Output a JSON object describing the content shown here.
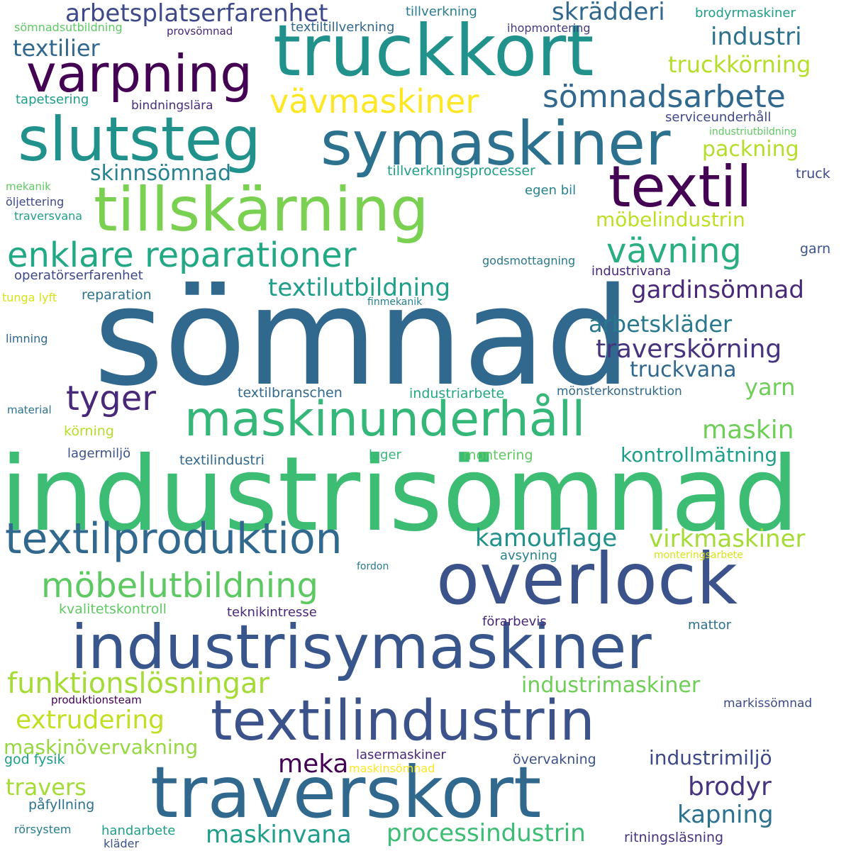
{
  "words": [
    {
      "text": "sömnad",
      "color": "#31688e"
    },
    {
      "text": "industrisömnad",
      "color": "#3dbc74"
    },
    {
      "text": "truckkort",
      "color": "#21918c"
    },
    {
      "text": "symaskiner",
      "color": "#2c728e"
    },
    {
      "text": "slutsteg",
      "color": "#21918c"
    },
    {
      "text": "industrisymaskiner",
      "color": "#39568c"
    },
    {
      "text": "overlock",
      "color": "#3b528b"
    },
    {
      "text": "traverskort",
      "color": "#31688e"
    },
    {
      "text": "textilindustrin",
      "color": "#3b528b"
    },
    {
      "text": "tillskärning",
      "color": "#7ad151"
    },
    {
      "text": "varpning",
      "color": "#440154"
    },
    {
      "text": "textil",
      "color": "#440154"
    },
    {
      "text": "maskinunderhåll",
      "color": "#35b779"
    },
    {
      "text": "textilproduktion",
      "color": "#31688e"
    },
    {
      "text": "enklare reparationer",
      "color": "#22a884"
    },
    {
      "text": "möbelutbildning",
      "color": "#5ec962"
    },
    {
      "text": "funktionslösningar",
      "color": "#a5db36"
    },
    {
      "text": "sömnadsarbete",
      "color": "#31688e"
    },
    {
      "text": "vävmaskiner",
      "color": "#fde725"
    },
    {
      "text": "vävning",
      "color": "#29af7f"
    },
    {
      "text": "tyger",
      "color": "#482878"
    },
    {
      "text": "arbetsplatserfarenhet",
      "color": "#3e4989"
    },
    {
      "text": "textilier",
      "color": "#31688e"
    },
    {
      "text": "skrädderi",
      "color": "#31688e"
    },
    {
      "text": "industri",
      "color": "#2c728e"
    },
    {
      "text": "truckkörning",
      "color": "#b5de2b"
    },
    {
      "text": "skinnsömnad",
      "color": "#26828e"
    },
    {
      "text": "packning",
      "color": "#b5de2b"
    },
    {
      "text": "möbelindustrin",
      "color": "#bddf26"
    },
    {
      "text": "textilutbildning",
      "color": "#1f9e89"
    },
    {
      "text": "gardinsömnad",
      "color": "#482878"
    },
    {
      "text": "arbetskläder",
      "color": "#2a788e"
    },
    {
      "text": "traverskörning",
      "color": "#46327e"
    },
    {
      "text": "truckvana",
      "color": "#31688e"
    },
    {
      "text": "yarn",
      "color": "#6ece58"
    },
    {
      "text": "maskin",
      "color": "#6ece58"
    },
    {
      "text": "kontrollmätning",
      "color": "#1f9e89"
    },
    {
      "text": "kamouflage",
      "color": "#21918c"
    },
    {
      "text": "virkmaskiner",
      "color": "#a5db36"
    },
    {
      "text": "industrimaskiner",
      "color": "#6ece58"
    },
    {
      "text": "extrudering",
      "color": "#c2df23"
    },
    {
      "text": "maskinövervakning",
      "color": "#95d840"
    },
    {
      "text": "meka",
      "color": "#440154"
    },
    {
      "text": "brodyr",
      "color": "#46327e"
    },
    {
      "text": "kapning",
      "color": "#2c728e"
    },
    {
      "text": "travers",
      "color": "#a5db36"
    },
    {
      "text": "industrimiljö",
      "color": "#3e4989"
    },
    {
      "text": "maskinvana",
      "color": "#1f9e89"
    },
    {
      "text": "processindustrin",
      "color": "#3dbc74"
    },
    {
      "text": "tillverkning",
      "color": "#287c8e"
    },
    {
      "text": "textiltillverkning",
      "color": "#31688e"
    },
    {
      "text": "brodyrmaskiner",
      "color": "#1f9e89"
    },
    {
      "text": "sömnadsutbildning",
      "color": "#5ec962"
    },
    {
      "text": "provsömnad",
      "color": "#482878"
    },
    {
      "text": "ihopmontering",
      "color": "#443983"
    },
    {
      "text": "tapetsering",
      "color": "#1f9e89"
    },
    {
      "text": "bindningslära",
      "color": "#472d7b"
    },
    {
      "text": "serviceunderhåll",
      "color": "#3e4989"
    },
    {
      "text": "industriutbildning",
      "color": "#5ec962"
    },
    {
      "text": "tillverkningsprocesser",
      "color": "#1f9e89"
    },
    {
      "text": "truck",
      "color": "#3e4989"
    },
    {
      "text": "egen bil",
      "color": "#26828e"
    },
    {
      "text": "mekanik",
      "color": "#5ec962"
    },
    {
      "text": "öljettering",
      "color": "#3e4989"
    },
    {
      "text": "traversvana",
      "color": "#1f9e89"
    },
    {
      "text": "operatörserfarenhet",
      "color": "#3e4989"
    },
    {
      "text": "godsmottagning",
      "color": "#2a788e"
    },
    {
      "text": "garn",
      "color": "#3b528b"
    },
    {
      "text": "industrivana",
      "color": "#482878"
    },
    {
      "text": "tunga lyft",
      "color": "#d8e219"
    },
    {
      "text": "reparation",
      "color": "#2c728e"
    },
    {
      "text": "finmekanik",
      "color": "#26828e"
    },
    {
      "text": "limning",
      "color": "#31688e"
    },
    {
      "text": "textilbranschen",
      "color": "#31688e"
    },
    {
      "text": "industriarbete",
      "color": "#22a884"
    },
    {
      "text": "mönsterkonstruktion",
      "color": "#31688e"
    },
    {
      "text": "material",
      "color": "#2c728e"
    },
    {
      "text": "körning",
      "color": "#b5de2b"
    },
    {
      "text": "lagermiljö",
      "color": "#3b528b"
    },
    {
      "text": "textilindustri",
      "color": "#31688e"
    },
    {
      "text": "lager",
      "color": "#35b779"
    },
    {
      "text": "montering",
      "color": "#5ec962"
    },
    {
      "text": "avsyning",
      "color": "#26828e"
    },
    {
      "text": "monteringsarbete",
      "color": "#d8e219"
    },
    {
      "text": "fordon",
      "color": "#287c8e"
    },
    {
      "text": "kvalitetskontroll",
      "color": "#5ec962"
    },
    {
      "text": "teknikintresse",
      "color": "#482878"
    },
    {
      "text": "förarbevis",
      "color": "#482878"
    },
    {
      "text": "mattor",
      "color": "#2c728e"
    },
    {
      "text": "produktionsteam",
      "color": "#440154"
    },
    {
      "text": "markissömnad",
      "color": "#3e4989"
    },
    {
      "text": "lasermaskiner",
      "color": "#482878"
    },
    {
      "text": "maskinsömnad",
      "color": "#fde725"
    },
    {
      "text": "övervakning",
      "color": "#3b528b"
    },
    {
      "text": "god fysik",
      "color": "#1f9e89"
    },
    {
      "text": "påfyllning",
      "color": "#2c728e"
    },
    {
      "text": "rörsystem",
      "color": "#287c8e"
    },
    {
      "text": "handarbete",
      "color": "#1f9e89"
    },
    {
      "text": "kläder",
      "color": "#3b528b"
    },
    {
      "text": "ritningsläsning",
      "color": "#46327e"
    }
  ]
}
